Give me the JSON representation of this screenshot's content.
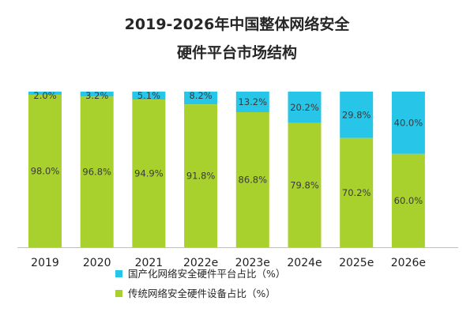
{
  "title": [
    "2019-2026年中国整体网络安全",
    "硬件平台市场结构"
  ],
  "colors": {
    "domestic": "#27C5E8",
    "traditional": "#A9D12E"
  },
  "chart_data": {
    "type": "bar",
    "stacked": true,
    "percent_stacked": true,
    "title": "2019-2026年中国整体网络安全硬件平台市场结构",
    "categories": [
      "2019",
      "2020",
      "2021",
      "2022e",
      "2023e",
      "2024e",
      "2025e",
      "2026e"
    ],
    "series": [
      {
        "name": "传统网络安全硬件设备占比（%）",
        "key": "traditional",
        "values": [
          98.0,
          96.8,
          94.9,
          91.8,
          86.8,
          79.8,
          70.2,
          60.0
        ],
        "labels": [
          "98.0%",
          "96.8%",
          "94.9%",
          "91.8%",
          "86.8%",
          "79.8%",
          "70.2%",
          "60.0%"
        ]
      },
      {
        "name": "国产化网络安全硬件平台占比（%）",
        "key": "domestic",
        "values": [
          2.0,
          3.2,
          5.1,
          8.2,
          13.2,
          20.2,
          29.8,
          40.0
        ],
        "labels": [
          "2.0%",
          "3.2%",
          "5.1%",
          "8.2%",
          "13.2%",
          "20.2%",
          "29.8%",
          "40.0%"
        ]
      }
    ],
    "ylim": [
      0,
      100
    ],
    "grid": false,
    "legend": "bottom"
  }
}
